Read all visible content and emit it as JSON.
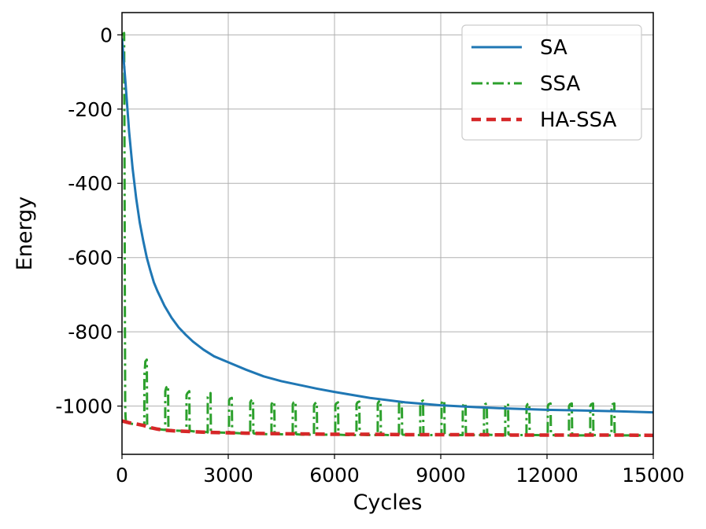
{
  "chart_data": {
    "type": "line",
    "xlabel": "Cycles",
    "ylabel": "Energy",
    "xlim": [
      0,
      15000
    ],
    "ylim": [
      -1130,
      60
    ],
    "x_ticks": [
      0,
      3000,
      6000,
      9000,
      12000,
      15000
    ],
    "x_tick_labels": [
      "0",
      "3000",
      "6000",
      "9000",
      "12000",
      "15000"
    ],
    "y_ticks": [
      0,
      -200,
      -400,
      -600,
      -800,
      -1000
    ],
    "y_tick_labels": [
      "0",
      "-200",
      "-400",
      "-600",
      "-800",
      "-1000"
    ],
    "grid": true,
    "legend_position": "upper right",
    "series": [
      {
        "name": "SA",
        "color": "#1f77b4",
        "style": "solid",
        "x": [
          0,
          100,
          200,
          300,
          400,
          500,
          600,
          700,
          800,
          900,
          1000,
          1200,
          1400,
          1600,
          1800,
          2000,
          2300,
          2600,
          3000,
          3500,
          4000,
          4500,
          5000,
          5500,
          6000,
          7000,
          8000,
          9000,
          10000,
          11000,
          12000,
          13000,
          14000,
          15000
        ],
        "y": [
          -10,
          -130,
          -260,
          -360,
          -440,
          -505,
          -555,
          -600,
          -635,
          -667,
          -690,
          -730,
          -762,
          -788,
          -808,
          -826,
          -848,
          -866,
          -882,
          -902,
          -920,
          -933,
          -943,
          -953,
          -962,
          -978,
          -990,
          -998,
          -1003,
          -1007,
          -1010,
          -1012,
          -1014,
          -1017
        ]
      },
      {
        "name": "SSA",
        "color": "#2ca02c",
        "style": "dashdot",
        "x": [
          0,
          60,
          70,
          80,
          90,
          100,
          110,
          130,
          200,
          400,
          600,
          630,
          632,
          660,
          700,
          710,
          730,
          800,
          1000,
          1200,
          1220,
          1222,
          1250,
          1300,
          1310,
          1330,
          1500,
          1800,
          1820,
          1822,
          1850,
          1900,
          1910,
          1930,
          2100,
          2400,
          2420,
          2422,
          2450,
          2500,
          2510,
          2530,
          2700,
          3000,
          3020,
          3022,
          3050,
          3100,
          3110,
          3130,
          3300,
          3600,
          3620,
          3622,
          3650,
          3700,
          3710,
          3730,
          3900,
          4200,
          4220,
          4222,
          4250,
          4300,
          4310,
          4330,
          4500,
          4800,
          4820,
          4822,
          4850,
          4900,
          4910,
          4930,
          5100,
          5400,
          5420,
          5422,
          5450,
          5500,
          5510,
          5530,
          5700,
          6000,
          6020,
          6022,
          6050,
          6100,
          6110,
          6130,
          6300,
          6600,
          6620,
          6622,
          6650,
          6700,
          6710,
          6730,
          6900,
          7200,
          7220,
          7222,
          7250,
          7300,
          7310,
          7330,
          7500,
          7800,
          7820,
          7822,
          7850,
          7900,
          7910,
          7930,
          8100,
          8400,
          8420,
          8422,
          8450,
          8500,
          8510,
          8530,
          8700,
          9000,
          9020,
          9022,
          9050,
          9100,
          9110,
          9130,
          9300,
          9600,
          9620,
          9622,
          9650,
          9700,
          9710,
          9730,
          9900,
          10200,
          10220,
          10222,
          10250,
          10300,
          10310,
          10330,
          10500,
          10800,
          10820,
          10822,
          10850,
          10900,
          10910,
          10930,
          11100,
          11400,
          11420,
          11422,
          11450,
          11500,
          11510,
          11530,
          11700,
          12000,
          12020,
          12022,
          12050,
          12100,
          12110,
          12130,
          12300,
          12600,
          12620,
          12622,
          12650,
          12700,
          12710,
          12730,
          12900,
          13200,
          13220,
          13222,
          13250,
          13300,
          13310,
          13330,
          13500,
          13800,
          13820,
          13822,
          13850,
          13900,
          13910,
          13930,
          14100,
          14400,
          14600,
          14800,
          15000
        ],
        "y": [
          0,
          5,
          -300,
          -700,
          -1000,
          -1030,
          -1040,
          -1045,
          -1047,
          -1049,
          -1050,
          -1051,
          -920,
          -880,
          -875,
          -1050,
          -1055,
          -1060,
          -1062,
          -1064,
          -1064,
          -960,
          -950,
          -945,
          -1060,
          -1064,
          -1066,
          -1067,
          -1068,
          -970,
          -965,
          -960,
          -1064,
          -1067,
          -1069,
          -1070,
          -1071,
          -975,
          -970,
          -965,
          -1068,
          -1070,
          -1071,
          -1072,
          -1073,
          -985,
          -980,
          -978,
          -1070,
          -1072,
          -1073,
          -1074,
          -1074,
          -990,
          -985,
          -982,
          -1072,
          -1074,
          -1075,
          -1076,
          -1076,
          -995,
          -990,
          -988,
          -1073,
          -1075,
          -1076,
          -1076,
          -1077,
          -995,
          -990,
          -988,
          -1074,
          -1076,
          -1077,
          -1077,
          -1077,
          -998,
          -993,
          -990,
          -1074,
          -1076,
          -1077,
          -1077,
          -1078,
          -998,
          -993,
          -990,
          -1075,
          -1077,
          -1078,
          -1078,
          -1078,
          -995,
          -990,
          -988,
          -1075,
          -1077,
          -1078,
          -1078,
          -1078,
          -993,
          -988,
          -985,
          -1075,
          -1077,
          -1078,
          -1078,
          -1078,
          -993,
          -988,
          -985,
          -1075,
          -1077,
          -1078,
          -1078,
          -1078,
          -993,
          -988,
          -985,
          -1075,
          -1077,
          -1078,
          -1078,
          -1078,
          -993,
          -988,
          -985,
          -1075,
          -1077,
          -1078,
          -1078,
          -1078,
          -1000,
          -995,
          -992,
          -1075,
          -1077,
          -1078,
          -1078,
          -1079,
          -1000,
          -995,
          -993,
          -1075,
          -1077,
          -1078,
          -1078,
          -1079,
          -1000,
          -995,
          -993,
          -1075,
          -1077,
          -1078,
          -1078,
          -1079,
          -1000,
          -995,
          -993,
          -1076,
          -1078,
          -1078,
          -1079,
          -1079,
          -1000,
          -995,
          -993,
          -1076,
          -1078,
          -1079,
          -1079,
          -1079,
          -1000,
          -995,
          -993,
          -1076,
          -1078,
          -1079,
          -1079,
          -1079,
          -1000,
          -995,
          -993,
          -1076,
          -1078,
          -1079,
          -1079,
          -1079,
          -1000,
          -995,
          -993,
          -1076,
          -1078,
          -1079,
          -1079,
          -1079,
          -1079,
          -1079
        ]
      },
      {
        "name": "HA-SSA",
        "color": "#d62728",
        "style": "dashed",
        "x": [
          0,
          200,
          400,
          600,
          800,
          1000,
          1200,
          1500,
          2000,
          2500,
          3000,
          3500,
          4000,
          5000,
          6000,
          7000,
          8000,
          9000,
          10000,
          11000,
          12000,
          13000,
          14000,
          15000
        ],
        "y": [
          -1040,
          -1045,
          -1048,
          -1052,
          -1058,
          -1062,
          -1065,
          -1067,
          -1069,
          -1071,
          -1072,
          -1073,
          -1074,
          -1075,
          -1076,
          -1076,
          -1077,
          -1077,
          -1077,
          -1078,
          -1078,
          -1078,
          -1078,
          -1079
        ]
      }
    ]
  }
}
